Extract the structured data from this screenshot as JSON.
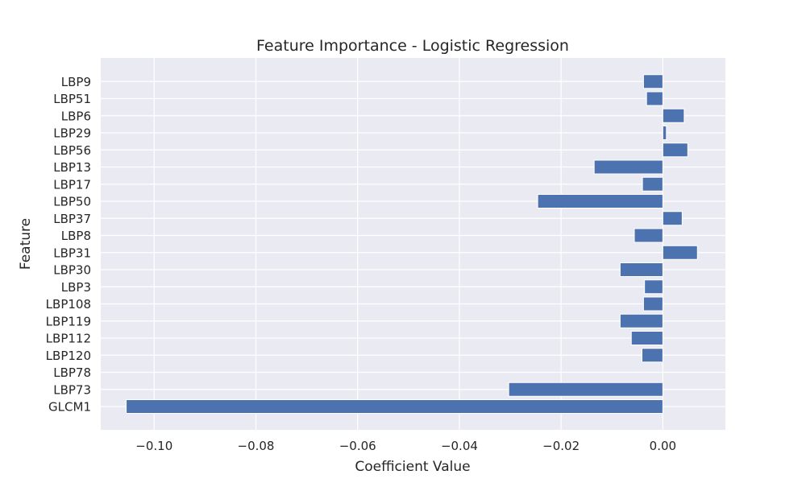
{
  "chart_data": {
    "type": "bar",
    "orientation": "horizontal",
    "title": "Feature Importance - Logistic Regression",
    "xlabel": "Coefficient Value",
    "ylabel": "Feature",
    "xlim": [
      -0.1105,
      0.0123
    ],
    "x_ticks": [
      -0.1,
      -0.08,
      -0.06,
      -0.04,
      -0.02,
      0.0
    ],
    "x_tick_labels": [
      "−0.10",
      "−0.08",
      "−0.06",
      "−0.04",
      "−0.02",
      "0.00"
    ],
    "grid": true,
    "categories": [
      "GLCM1",
      "LBP73",
      "LBP78",
      "LBP120",
      "LBP112",
      "LBP119",
      "LBP108",
      "LBP3",
      "LBP30",
      "LBP31",
      "LBP8",
      "LBP37",
      "LBP50",
      "LBP17",
      "LBP13",
      "LBP56",
      "LBP29",
      "LBP6",
      "LBP51",
      "LBP9"
    ],
    "values": [
      -0.1055,
      -0.0303,
      0.0,
      -0.0041,
      -0.0062,
      -0.0084,
      -0.0038,
      -0.0036,
      -0.0084,
      0.0068,
      -0.0056,
      0.0038,
      -0.0246,
      -0.004,
      -0.0135,
      0.0049,
      0.0007,
      0.0042,
      -0.0032,
      -0.0038
    ],
    "bar_color": "#4c72b0",
    "background_color": "#eaeaf2"
  }
}
